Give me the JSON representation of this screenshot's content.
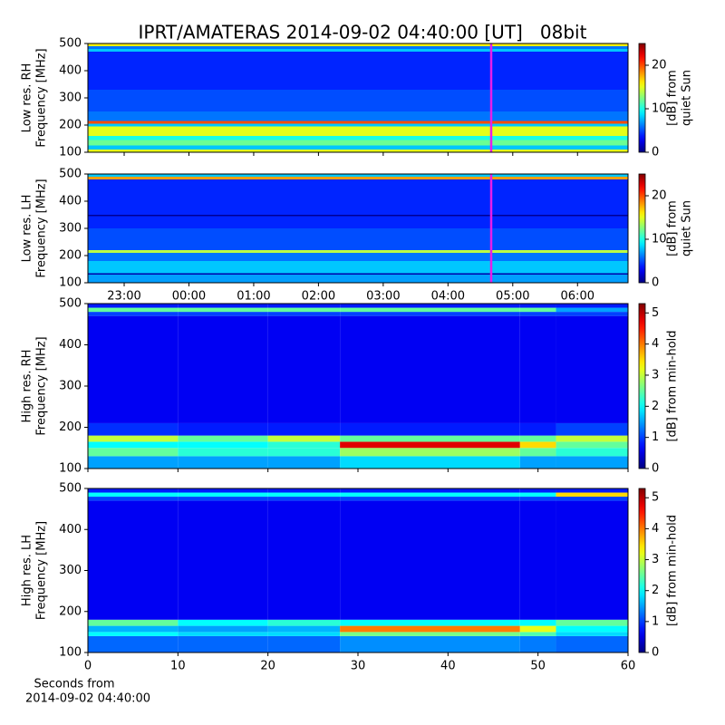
{
  "chart_data": [
    {
      "type": "heatmap",
      "title": "IPRT/AMATERAS 2014-09-02 04:40:00 [UT]   08bit",
      "ylabel": [
        "Low res. RH",
        "Frequency [MHz]"
      ],
      "ylim": [
        100,
        500
      ],
      "yticks": [
        100,
        200,
        300,
        400,
        500
      ],
      "xlim": [
        22.44,
        30.78
      ],
      "colormap": "jet",
      "cbar_label": [
        "[dB] from",
        "quiet Sun"
      ],
      "clim": [
        0,
        25
      ],
      "cticks": [
        0,
        10,
        20
      ],
      "vline": 28.667,
      "vline_color": "#e81ee8",
      "x_edges": [
        22.44,
        30.78
      ],
      "y_edges": [
        100,
        110,
        125,
        145,
        160,
        195,
        205,
        215,
        250,
        330,
        470,
        480,
        490,
        500
      ],
      "values": [
        [
          15
        ],
        [
          8
        ],
        [
          12
        ],
        [
          10
        ],
        [
          15
        ],
        [
          8
        ],
        [
          20
        ],
        [
          6
        ],
        [
          5
        ],
        [
          4
        ],
        [
          8
        ],
        [
          6
        ],
        [
          16
        ]
      ]
    },
    {
      "type": "heatmap",
      "ylabel": [
        "Low res. LH",
        "Frequency [MHz]"
      ],
      "ylim": [
        100,
        500
      ],
      "yticks": [
        100,
        200,
        300,
        400,
        500
      ],
      "xlim": [
        22.44,
        30.78
      ],
      "xticks": [
        {
          "value": 23,
          "label": "23:00"
        },
        {
          "value": 24,
          "label": "00:00"
        },
        {
          "value": 25,
          "label": "01:00"
        },
        {
          "value": 26,
          "label": "02:00"
        },
        {
          "value": 27,
          "label": "03:00"
        },
        {
          "value": 28,
          "label": "04:00"
        },
        {
          "value": 29,
          "label": "05:00"
        },
        {
          "value": 30,
          "label": "06:00"
        }
      ],
      "colormap": "jet",
      "cbar_label": [
        "[dB] from",
        "quiet Sun"
      ],
      "clim": [
        0,
        25
      ],
      "cticks": [
        0,
        10,
        20
      ],
      "vline": 28.667,
      "vline_color": "#e81ee8",
      "x_edges": [
        22.44,
        30.78
      ],
      "y_edges": [
        100,
        130,
        135,
        180,
        210,
        220,
        300,
        345,
        350,
        480,
        490,
        500
      ],
      "values": [
        [
          7
        ],
        [
          1
        ],
        [
          8
        ],
        [
          6
        ],
        [
          14
        ],
        [
          5
        ],
        [
          4
        ],
        [
          0.5
        ],
        [
          4
        ],
        [
          18
        ],
        [
          8
        ]
      ]
    },
    {
      "type": "heatmap",
      "ylabel": [
        "High res. RH",
        "Frequency [MHz]"
      ],
      "ylim": [
        100,
        500
      ],
      "yticks": [
        100,
        200,
        300,
        400,
        500
      ],
      "xlim": [
        0,
        60
      ],
      "colormap": "jet",
      "cbar_label": [
        "[dB] from min-hold"
      ],
      "clim": [
        0,
        5.3
      ],
      "cticks": [
        0,
        1,
        2,
        3,
        4,
        5
      ],
      "x_edges": [
        0,
        10,
        20,
        28,
        48,
        52,
        60
      ],
      "y_edges": [
        100,
        130,
        150,
        165,
        180,
        210,
        470,
        480,
        490,
        500
      ],
      "values": [
        [
          1.5,
          1.5,
          1.5,
          1.8,
          1.5,
          1.5
        ],
        [
          2.5,
          2.2,
          2.2,
          2.8,
          2.5,
          2.2
        ],
        [
          2.0,
          2.0,
          2.2,
          4.8,
          3.5,
          2.5
        ],
        [
          3.0,
          2.5,
          3.0,
          2.5,
          2.5,
          3.0
        ],
        [
          0.9,
          0.8,
          0.8,
          0.8,
          0.8,
          1.0
        ],
        [
          0.6,
          0.6,
          0.6,
          0.6,
          0.6,
          0.6
        ],
        [
          1.0,
          1.0,
          1.0,
          1.0,
          1.0,
          1.0
        ],
        [
          2.5,
          2.5,
          2.5,
          2.5,
          2.5,
          1.5
        ],
        [
          0.8,
          0.8,
          0.8,
          0.8,
          0.8,
          0.8
        ]
      ]
    },
    {
      "type": "heatmap",
      "ylabel": [
        "High res. LH",
        "Frequency [MHz]"
      ],
      "ylim": [
        100,
        500
      ],
      "yticks": [
        100,
        200,
        300,
        400,
        500
      ],
      "xlim": [
        0,
        60
      ],
      "xticks": [
        0,
        10,
        20,
        30,
        40,
        50,
        60
      ],
      "xlabel": [
        "Seconds from",
        "2014-09-02 04:40:00"
      ],
      "colormap": "jet",
      "cbar_label": [
        "[dB] from min-hold"
      ],
      "clim": [
        0,
        5.3
      ],
      "cticks": [
        0,
        1,
        2,
        3,
        4,
        5
      ],
      "x_edges": [
        0,
        10,
        20,
        28,
        48,
        52,
        60
      ],
      "y_edges": [
        100,
        140,
        150,
        165,
        180,
        470,
        480,
        490,
        500
      ],
      "values": [
        [
          1.2,
          1.2,
          1.2,
          1.4,
          1.3,
          1.2
        ],
        [
          2.0,
          1.8,
          1.8,
          2.6,
          2.4,
          1.8
        ],
        [
          1.6,
          1.5,
          1.6,
          4.0,
          3.2,
          2.0
        ],
        [
          2.5,
          2.0,
          2.2,
          2.0,
          2.0,
          2.5
        ],
        [
          0.6,
          0.6,
          0.6,
          0.6,
          0.6,
          0.6
        ],
        [
          1.0,
          1.0,
          1.0,
          1.0,
          1.0,
          1.0
        ],
        [
          2.0,
          2.0,
          2.0,
          2.0,
          2.0,
          3.5
        ],
        [
          0.8,
          0.8,
          0.8,
          0.8,
          0.8,
          0.8
        ]
      ]
    }
  ]
}
